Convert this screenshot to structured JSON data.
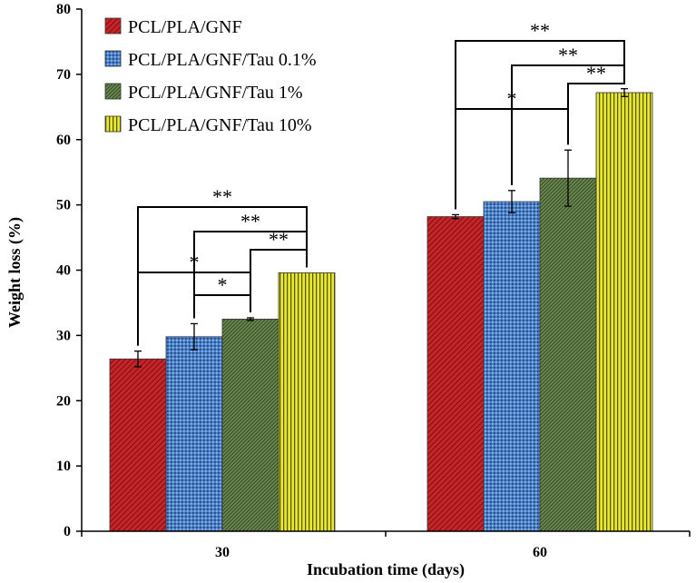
{
  "chart_data": {
    "type": "bar",
    "title": "",
    "xlabel": "Incubation time (days)",
    "ylabel": "Weight loss (%)",
    "ylim": [
      0,
      80
    ],
    "yticks": [
      "0",
      "10",
      "20",
      "30",
      "40",
      "50",
      "60",
      "70",
      "80"
    ],
    "categories": [
      "30",
      "60"
    ],
    "series": [
      {
        "name": "PCL/PLA/GNF",
        "color": "#c8252b",
        "pattern": "diagonal",
        "values": [
          26.4,
          48.2
        ],
        "errors": [
          1.2,
          0.3
        ]
      },
      {
        "name": "PCL/PLA/GNF/Tau 0.1%",
        "color": "#4a80c8",
        "pattern": "dots",
        "values": [
          29.8,
          50.5
        ],
        "errors": [
          2.0,
          1.7
        ]
      },
      {
        "name": "PCL/PLA/GNF/Tau 1%",
        "color": "#6e8b4e",
        "pattern": "diagonal-dense",
        "values": [
          32.5,
          54.1
        ],
        "errors": [
          0.2,
          4.3
        ]
      },
      {
        "name": "PCL/PLA/GNF/Tau 10%",
        "color": "#e8e830",
        "pattern": "vertical",
        "values": [
          39.6,
          67.2
        ],
        "errors": [
          0.0,
          0.6
        ]
      }
    ],
    "legend_position": "top-left",
    "significance": [
      {
        "category": 0,
        "from": 1,
        "to": 2,
        "label": "*"
      },
      {
        "category": 0,
        "from": 0,
        "to": 2,
        "label": "*"
      },
      {
        "category": 0,
        "from": 2,
        "to": 3,
        "label": "**"
      },
      {
        "category": 0,
        "from": 1,
        "to": 3,
        "label": "**"
      },
      {
        "category": 0,
        "from": 0,
        "to": 3,
        "label": "**"
      },
      {
        "category": 1,
        "from": 0,
        "to": 2,
        "label": "*"
      },
      {
        "category": 1,
        "from": 2,
        "to": 3,
        "label": "**"
      },
      {
        "category": 1,
        "from": 1,
        "to": 3,
        "label": "**"
      },
      {
        "category": 1,
        "from": 0,
        "to": 3,
        "label": "**"
      }
    ]
  }
}
